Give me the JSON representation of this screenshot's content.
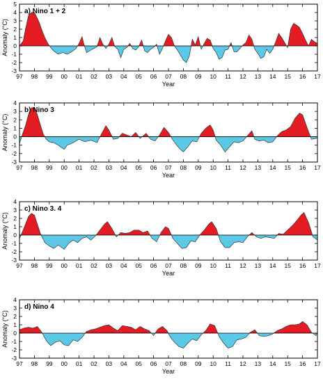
{
  "figure": {
    "colors": {
      "positive": "#e31b23",
      "negative": "#5bc8e6",
      "line": "#333333"
    }
  },
  "chart_data": [
    {
      "type": "area",
      "title": "a) Nino 1 + 2",
      "xlabel": "Year",
      "ylabel": "Anomaly (°C)",
      "ylim": [
        -3,
        5
      ],
      "yticks": [
        5,
        4,
        3,
        2,
        1,
        0,
        -1,
        -2,
        -3
      ],
      "xlim": [
        1997,
        2017
      ],
      "xticklabels": [
        "97",
        "98",
        "99",
        "00",
        "01",
        "02",
        "03",
        "04",
        "05",
        "06",
        "07",
        "08",
        "09",
        "10",
        "11",
        "12",
        "13",
        "14",
        "15",
        "16",
        "17"
      ],
      "grid": false,
      "x": [
        1997.0,
        1997.25,
        1997.4,
        1997.6,
        1997.8,
        1998.0,
        1998.2,
        1998.35,
        1998.5,
        1998.7,
        1998.9,
        1999.1,
        1999.3,
        1999.6,
        1999.9,
        2000.2,
        2000.5,
        2000.8,
        2001.0,
        2001.2,
        2001.3,
        2001.5,
        2001.8,
        2002.0,
        2002.2,
        2002.4,
        2002.6,
        2002.8,
        2003.0,
        2003.2,
        2003.4,
        2003.6,
        2003.8,
        2004.0,
        2004.2,
        2004.4,
        2004.6,
        2004.8,
        2005.0,
        2005.2,
        2005.4,
        2005.6,
        2005.8,
        2006.0,
        2006.2,
        2006.4,
        2006.6,
        2006.8,
        2007.0,
        2007.2,
        2007.4,
        2007.6,
        2007.8,
        2008.0,
        2008.2,
        2008.4,
        2008.6,
        2008.8,
        2009.0,
        2009.2,
        2009.4,
        2009.6,
        2009.8,
        2010.0,
        2010.2,
        2010.4,
        2010.6,
        2010.8,
        2011.0,
        2011.2,
        2011.4,
        2011.6,
        2011.8,
        2012.0,
        2012.2,
        2012.4,
        2012.6,
        2012.8,
        2013.0,
        2013.2,
        2013.4,
        2013.6,
        2013.8,
        2014.0,
        2014.2,
        2014.4,
        2014.6,
        2014.8,
        2015.0,
        2015.2,
        2015.4,
        2015.6,
        2015.8,
        2016.0,
        2016.2,
        2016.4,
        2016.6,
        2016.8,
        2017.0
      ],
      "values": [
        0.0,
        0.6,
        2.0,
        3.6,
        4.0,
        4.0,
        3.3,
        2.7,
        1.9,
        1.0,
        0.3,
        -0.2,
        -0.6,
        -1.0,
        -0.8,
        -1.0,
        -0.7,
        -0.3,
        0.3,
        1.1,
        0.4,
        -0.8,
        -0.5,
        -0.3,
        -0.1,
        1.0,
        0.2,
        -0.3,
        0.2,
        1.0,
        -0.1,
        -0.4,
        -1.4,
        -0.4,
        -0.2,
        0.3,
        -0.3,
        -0.5,
        -0.1,
        0.7,
        -0.6,
        -0.8,
        -0.4,
        -0.2,
        0.2,
        -1.0,
        -0.3,
        0.6,
        1.4,
        1.0,
        0.0,
        -0.5,
        -1.1,
        -1.7,
        -2.0,
        -1.2,
        0.8,
        0.1,
        1.1,
        -0.4,
        0.3,
        0.9,
        0.7,
        -0.3,
        -0.8,
        -1.6,
        -1.4,
        -0.5,
        -0.4,
        0.4,
        -0.7,
        -0.7,
        -0.3,
        0.1,
        0.4,
        1.3,
        0.8,
        -0.4,
        -0.9,
        -1.5,
        -1.3,
        -0.4,
        -0.9,
        -0.4,
        0.5,
        1.5,
        1.0,
        0.4,
        -0.2,
        2.0,
        2.7,
        2.5,
        2.2,
        1.5,
        0.7,
        0.0,
        0.8,
        0.5,
        0.3
      ]
    },
    {
      "type": "area",
      "title": "b) Nino 3",
      "xlabel": "Year",
      "ylabel": "Anomaly (°C)",
      "ylim": [
        -3,
        4
      ],
      "yticks": [
        4,
        3,
        2,
        1,
        0,
        -1,
        -2,
        -3
      ],
      "xlim": [
        1997,
        2017
      ],
      "xticklabels": [
        "97",
        "98",
        "99",
        "00",
        "01",
        "02",
        "03",
        "04",
        "05",
        "06",
        "07",
        "08",
        "09",
        "10",
        "11",
        "12",
        "13",
        "14",
        "15",
        "16",
        "17"
      ],
      "grid": false,
      "x": [
        1997.0,
        1997.2,
        1997.4,
        1997.6,
        1997.8,
        1998.0,
        1998.2,
        1998.4,
        1998.6,
        1998.8,
        1999.0,
        1999.3,
        1999.6,
        2000.0,
        2000.2,
        2000.5,
        2000.8,
        2001.0,
        2001.4,
        2001.8,
        2002.2,
        2002.5,
        2002.8,
        2003.0,
        2003.3,
        2003.6,
        2003.9,
        2004.2,
        2004.5,
        2004.8,
        2005.1,
        2005.5,
        2005.8,
        2006.1,
        2006.4,
        2006.7,
        2007.0,
        2007.3,
        2007.6,
        2007.8,
        2008.0,
        2008.3,
        2008.6,
        2008.9,
        2009.2,
        2009.5,
        2009.8,
        2010.0,
        2010.2,
        2010.5,
        2010.8,
        2011.1,
        2011.4,
        2011.7,
        2012.0,
        2012.3,
        2012.6,
        2012.8,
        2013.1,
        2013.4,
        2013.7,
        2014.0,
        2014.3,
        2014.6,
        2014.9,
        2015.2,
        2015.5,
        2015.8,
        2016.0,
        2016.3,
        2016.6,
        2016.9,
        2017.0
      ],
      "values": [
        -0.8,
        0.3,
        1.3,
        2.6,
        3.4,
        3.5,
        2.6,
        1.4,
        0.3,
        -0.3,
        -0.6,
        -0.7,
        -1.0,
        -1.5,
        -1.0,
        -0.8,
        -0.5,
        -0.3,
        -0.6,
        -0.4,
        -0.7,
        0.3,
        1.3,
        0.8,
        -0.3,
        -0.2,
        0.4,
        0.2,
        0.0,
        0.5,
        -0.2,
        0.4,
        -0.3,
        -0.5,
        0.2,
        1.1,
        0.5,
        -0.4,
        -1.1,
        -1.5,
        -1.8,
        -1.2,
        -0.5,
        -0.6,
        0.4,
        1.0,
        1.4,
        0.8,
        -0.4,
        -1.0,
        -1.8,
        -1.2,
        -0.6,
        -0.7,
        -0.5,
        0.1,
        0.7,
        -0.3,
        -0.5,
        -0.4,
        -0.7,
        -0.6,
        0.1,
        0.6,
        0.8,
        1.2,
        2.2,
        2.8,
        2.6,
        1.1,
        -0.3,
        -0.2,
        -0.1
      ]
    },
    {
      "type": "area",
      "title": "c) Nino 3. 4",
      "xlabel": "Year",
      "ylabel": "Anomaly (°C)",
      "ylim": [
        -3,
        4
      ],
      "yticks": [
        4,
        3,
        2,
        1,
        0,
        -1,
        -2,
        -3
      ],
      "xlim": [
        1997,
        2017
      ],
      "xticklabels": [
        "97",
        "98",
        "99",
        "00",
        "01",
        "02",
        "03",
        "04",
        "05",
        "06",
        "07",
        "08",
        "09",
        "10",
        "11",
        "12",
        "13",
        "14",
        "15",
        "16",
        "17"
      ],
      "grid": false,
      "x": [
        1997.0,
        1997.2,
        1997.4,
        1997.6,
        1997.8,
        1998.0,
        1998.2,
        1998.4,
        1998.7,
        1999.0,
        1999.3,
        1999.6,
        2000.0,
        2000.3,
        2000.6,
        2000.9,
        2001.2,
        2001.5,
        2001.8,
        2002.1,
        2002.4,
        2002.7,
        2002.9,
        2003.2,
        2003.5,
        2003.8,
        2004.1,
        2004.4,
        2004.7,
        2005.0,
        2005.3,
        2005.6,
        2005.9,
        2006.2,
        2006.5,
        2006.8,
        2007.0,
        2007.3,
        2007.6,
        2007.9,
        2008.2,
        2008.5,
        2008.8,
        2009.1,
        2009.4,
        2009.7,
        2009.9,
        2010.2,
        2010.5,
        2010.8,
        2011.1,
        2011.4,
        2011.7,
        2012.0,
        2012.3,
        2012.6,
        2012.9,
        2013.2,
        2013.5,
        2013.8,
        2014.1,
        2014.4,
        2014.7,
        2015.0,
        2015.3,
        2015.6,
        2015.9,
        2016.1,
        2016.4,
        2016.7,
        2017.0
      ],
      "values": [
        -0.4,
        0.4,
        1.3,
        2.2,
        2.6,
        2.4,
        1.3,
        0.2,
        -0.9,
        -1.3,
        -1.6,
        -1.2,
        -1.7,
        -1.0,
        -0.6,
        -0.9,
        -0.4,
        -0.2,
        -0.6,
        -0.1,
        0.6,
        1.3,
        1.6,
        0.8,
        -0.2,
        0.3,
        0.2,
        0.3,
        0.6,
        0.6,
        0.3,
        0.5,
        -0.4,
        -0.8,
        0.3,
        1.0,
        0.8,
        -0.4,
        -1.0,
        -1.6,
        -1.5,
        -0.7,
        -0.8,
        0.0,
        0.6,
        1.3,
        1.6,
        0.8,
        -0.8,
        -1.5,
        -1.5,
        -0.9,
        -0.8,
        -0.9,
        -0.2,
        0.3,
        -0.2,
        -0.4,
        -0.2,
        -0.3,
        -0.4,
        0.2,
        0.1,
        0.6,
        1.1,
        1.7,
        2.4,
        2.7,
        1.5,
        -0.2,
        -0.6
      ]
    },
    {
      "type": "area",
      "title": "d) Nino 4",
      "xlabel": "Year",
      "ylabel": "Anomaly (°C)",
      "ylim": [
        -3,
        4
      ],
      "yticks": [
        4,
        3,
        2,
        1,
        0,
        -1,
        -2,
        -3
      ],
      "xlim": [
        1997,
        2017
      ],
      "xticklabels": [
        "97",
        "98",
        "99",
        "00",
        "01",
        "02",
        "03",
        "04",
        "05",
        "06",
        "07",
        "08",
        "09",
        "10",
        "11",
        "12",
        "13",
        "14",
        "15",
        "16",
        "17"
      ],
      "grid": false,
      "x": [
        1997.0,
        1997.3,
        1997.6,
        1997.9,
        1998.2,
        1998.5,
        1998.8,
        1999.1,
        1999.4,
        1999.7,
        2000.0,
        2000.3,
        2000.6,
        2000.9,
        2001.2,
        2001.5,
        2001.8,
        2002.1,
        2002.4,
        2002.7,
        2003.0,
        2003.3,
        2003.6,
        2003.9,
        2004.2,
        2004.5,
        2004.8,
        2005.1,
        2005.4,
        2005.7,
        2006.0,
        2006.3,
        2006.6,
        2006.9,
        2007.1,
        2007.4,
        2007.7,
        2008.0,
        2008.3,
        2008.6,
        2008.9,
        2009.2,
        2009.5,
        2009.8,
        2010.1,
        2010.4,
        2010.7,
        2011.0,
        2011.3,
        2011.6,
        2011.9,
        2012.2,
        2012.5,
        2012.8,
        2013.1,
        2013.4,
        2013.7,
        2014.0,
        2014.3,
        2014.6,
        2014.9,
        2015.2,
        2015.5,
        2015.8,
        2016.0,
        2016.3,
        2016.6,
        2016.9,
        2017.0
      ],
      "values": [
        0.4,
        0.6,
        0.7,
        0.6,
        0.8,
        0.1,
        -0.9,
        -1.5,
        -1.1,
        -0.9,
        -1.4,
        -1.5,
        -0.8,
        -1.0,
        -0.5,
        0.2,
        0.4,
        0.5,
        0.7,
        0.9,
        1.0,
        0.6,
        0.3,
        0.9,
        0.8,
        0.7,
        0.4,
        0.8,
        0.5,
        0.3,
        -0.3,
        0.5,
        0.8,
        0.3,
        -0.4,
        -1.1,
        -1.6,
        -1.8,
        -1.2,
        -0.7,
        -0.9,
        -0.2,
        0.3,
        1.1,
        0.9,
        -0.4,
        -1.2,
        -1.8,
        -1.6,
        -0.8,
        -0.7,
        -0.5,
        0.1,
        0.4,
        -0.3,
        -0.4,
        -0.3,
        -0.1,
        0.3,
        0.5,
        0.8,
        1.0,
        1.0,
        1.1,
        1.4,
        1.0,
        0.1,
        -0.3,
        0.1
      ]
    }
  ]
}
